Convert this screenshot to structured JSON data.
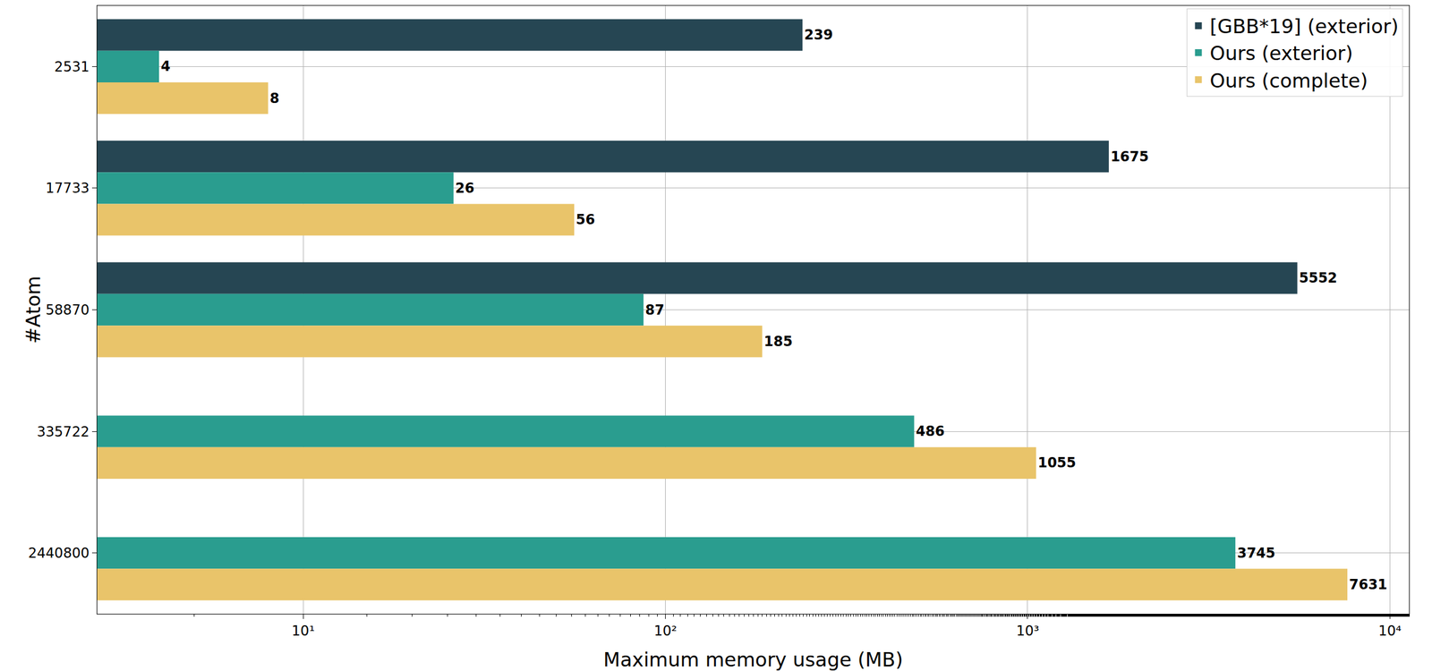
{
  "chart_data": {
    "type": "bar",
    "orientation": "horizontal",
    "x_label": "Maximum memory usage (MB)",
    "y_label": "#Atom",
    "categories": [
      "2531",
      "17733",
      "58870",
      "335722",
      "2440800"
    ],
    "series": [
      {
        "name": "[GBB*19] (exterior)",
        "color": "#264653",
        "values": [
          239,
          1675,
          5552,
          null,
          null
        ]
      },
      {
        "name": "Ours (exterior)",
        "color": "#2a9d8f",
        "values": [
          4,
          26,
          87,
          486,
          3745
        ]
      },
      {
        "name": "Ours (complete)",
        "color": "#e9c46a",
        "values": [
          8,
          56,
          185,
          1055,
          7631
        ]
      }
    ],
    "log": "x",
    "xlim": [
      2.7,
      11300
    ],
    "xticks": [
      {
        "value": 10,
        "label": "10¹"
      },
      {
        "value": 100,
        "label": "10²"
      },
      {
        "value": 1000,
        "label": "10³"
      },
      {
        "value": 10000,
        "label": "10⁴"
      }
    ],
    "grid": true,
    "legend": "top right",
    "data_labels": true
  }
}
